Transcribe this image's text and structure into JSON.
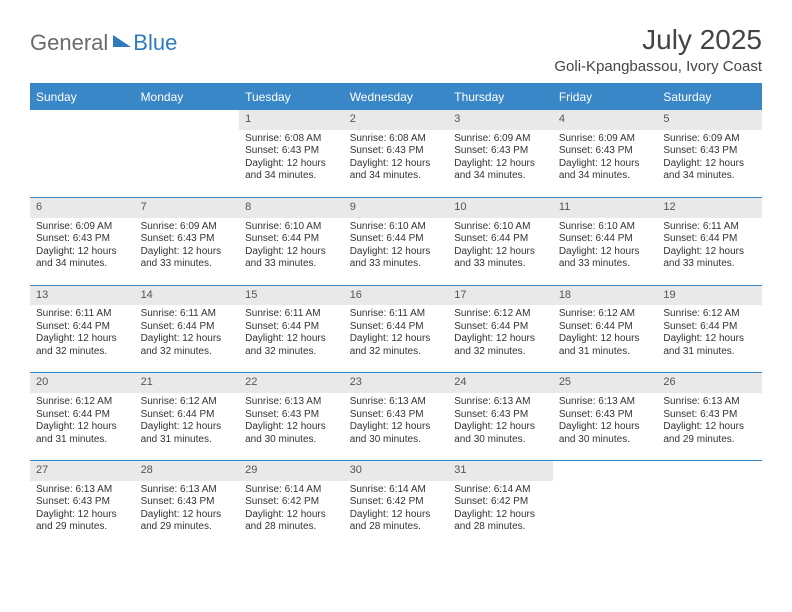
{
  "brand": {
    "general": "General",
    "blue": "Blue"
  },
  "title": "July 2025",
  "location": "Goli-Kpangbassou, Ivory Coast",
  "colors": {
    "header_bg": "#3a87c8",
    "header_text": "#ffffff",
    "daynum_bg": "#e9e9e9",
    "row_border": "#3a87c8",
    "logo_gray": "#6b6b6b",
    "logo_blue": "#2f7bbf"
  },
  "weekdays": [
    "Sunday",
    "Monday",
    "Tuesday",
    "Wednesday",
    "Thursday",
    "Friday",
    "Saturday"
  ],
  "weeks": [
    [
      null,
      null,
      {
        "n": "1",
        "sr": "Sunrise: 6:08 AM",
        "ss": "Sunset: 6:43 PM",
        "dl": "Daylight: 12 hours and 34 minutes."
      },
      {
        "n": "2",
        "sr": "Sunrise: 6:08 AM",
        "ss": "Sunset: 6:43 PM",
        "dl": "Daylight: 12 hours and 34 minutes."
      },
      {
        "n": "3",
        "sr": "Sunrise: 6:09 AM",
        "ss": "Sunset: 6:43 PM",
        "dl": "Daylight: 12 hours and 34 minutes."
      },
      {
        "n": "4",
        "sr": "Sunrise: 6:09 AM",
        "ss": "Sunset: 6:43 PM",
        "dl": "Daylight: 12 hours and 34 minutes."
      },
      {
        "n": "5",
        "sr": "Sunrise: 6:09 AM",
        "ss": "Sunset: 6:43 PM",
        "dl": "Daylight: 12 hours and 34 minutes."
      }
    ],
    [
      {
        "n": "6",
        "sr": "Sunrise: 6:09 AM",
        "ss": "Sunset: 6:43 PM",
        "dl": "Daylight: 12 hours and 34 minutes."
      },
      {
        "n": "7",
        "sr": "Sunrise: 6:09 AM",
        "ss": "Sunset: 6:43 PM",
        "dl": "Daylight: 12 hours and 33 minutes."
      },
      {
        "n": "8",
        "sr": "Sunrise: 6:10 AM",
        "ss": "Sunset: 6:44 PM",
        "dl": "Daylight: 12 hours and 33 minutes."
      },
      {
        "n": "9",
        "sr": "Sunrise: 6:10 AM",
        "ss": "Sunset: 6:44 PM",
        "dl": "Daylight: 12 hours and 33 minutes."
      },
      {
        "n": "10",
        "sr": "Sunrise: 6:10 AM",
        "ss": "Sunset: 6:44 PM",
        "dl": "Daylight: 12 hours and 33 minutes."
      },
      {
        "n": "11",
        "sr": "Sunrise: 6:10 AM",
        "ss": "Sunset: 6:44 PM",
        "dl": "Daylight: 12 hours and 33 minutes."
      },
      {
        "n": "12",
        "sr": "Sunrise: 6:11 AM",
        "ss": "Sunset: 6:44 PM",
        "dl": "Daylight: 12 hours and 33 minutes."
      }
    ],
    [
      {
        "n": "13",
        "sr": "Sunrise: 6:11 AM",
        "ss": "Sunset: 6:44 PM",
        "dl": "Daylight: 12 hours and 32 minutes."
      },
      {
        "n": "14",
        "sr": "Sunrise: 6:11 AM",
        "ss": "Sunset: 6:44 PM",
        "dl": "Daylight: 12 hours and 32 minutes."
      },
      {
        "n": "15",
        "sr": "Sunrise: 6:11 AM",
        "ss": "Sunset: 6:44 PM",
        "dl": "Daylight: 12 hours and 32 minutes."
      },
      {
        "n": "16",
        "sr": "Sunrise: 6:11 AM",
        "ss": "Sunset: 6:44 PM",
        "dl": "Daylight: 12 hours and 32 minutes."
      },
      {
        "n": "17",
        "sr": "Sunrise: 6:12 AM",
        "ss": "Sunset: 6:44 PM",
        "dl": "Daylight: 12 hours and 32 minutes."
      },
      {
        "n": "18",
        "sr": "Sunrise: 6:12 AM",
        "ss": "Sunset: 6:44 PM",
        "dl": "Daylight: 12 hours and 31 minutes."
      },
      {
        "n": "19",
        "sr": "Sunrise: 6:12 AM",
        "ss": "Sunset: 6:44 PM",
        "dl": "Daylight: 12 hours and 31 minutes."
      }
    ],
    [
      {
        "n": "20",
        "sr": "Sunrise: 6:12 AM",
        "ss": "Sunset: 6:44 PM",
        "dl": "Daylight: 12 hours and 31 minutes."
      },
      {
        "n": "21",
        "sr": "Sunrise: 6:12 AM",
        "ss": "Sunset: 6:44 PM",
        "dl": "Daylight: 12 hours and 31 minutes."
      },
      {
        "n": "22",
        "sr": "Sunrise: 6:13 AM",
        "ss": "Sunset: 6:43 PM",
        "dl": "Daylight: 12 hours and 30 minutes."
      },
      {
        "n": "23",
        "sr": "Sunrise: 6:13 AM",
        "ss": "Sunset: 6:43 PM",
        "dl": "Daylight: 12 hours and 30 minutes."
      },
      {
        "n": "24",
        "sr": "Sunrise: 6:13 AM",
        "ss": "Sunset: 6:43 PM",
        "dl": "Daylight: 12 hours and 30 minutes."
      },
      {
        "n": "25",
        "sr": "Sunrise: 6:13 AM",
        "ss": "Sunset: 6:43 PM",
        "dl": "Daylight: 12 hours and 30 minutes."
      },
      {
        "n": "26",
        "sr": "Sunrise: 6:13 AM",
        "ss": "Sunset: 6:43 PM",
        "dl": "Daylight: 12 hours and 29 minutes."
      }
    ],
    [
      {
        "n": "27",
        "sr": "Sunrise: 6:13 AM",
        "ss": "Sunset: 6:43 PM",
        "dl": "Daylight: 12 hours and 29 minutes."
      },
      {
        "n": "28",
        "sr": "Sunrise: 6:13 AM",
        "ss": "Sunset: 6:43 PM",
        "dl": "Daylight: 12 hours and 29 minutes."
      },
      {
        "n": "29",
        "sr": "Sunrise: 6:14 AM",
        "ss": "Sunset: 6:42 PM",
        "dl": "Daylight: 12 hours and 28 minutes."
      },
      {
        "n": "30",
        "sr": "Sunrise: 6:14 AM",
        "ss": "Sunset: 6:42 PM",
        "dl": "Daylight: 12 hours and 28 minutes."
      },
      {
        "n": "31",
        "sr": "Sunrise: 6:14 AM",
        "ss": "Sunset: 6:42 PM",
        "dl": "Daylight: 12 hours and 28 minutes."
      },
      null,
      null
    ]
  ]
}
